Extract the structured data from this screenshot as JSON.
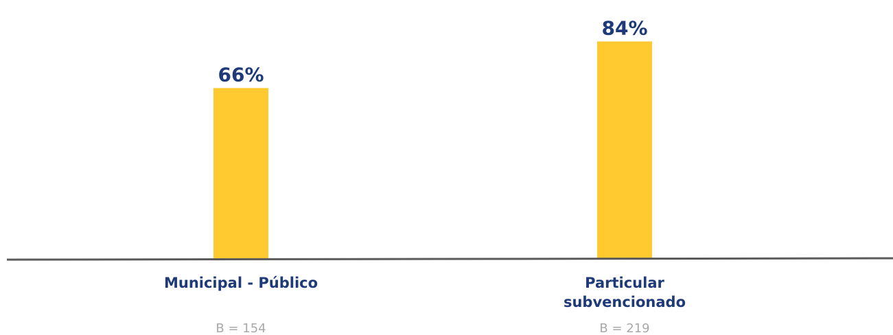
{
  "chart_data": {
    "type": "bar",
    "categories": [
      "Municipal - Público",
      "Particular subvencionado"
    ],
    "category_lines": [
      [
        "Municipal - Público"
      ],
      [
        "Particular",
        "subvencionado"
      ]
    ],
    "values": [
      66,
      84
    ],
    "value_labels": [
      "66%",
      "84%"
    ],
    "bases": [
      "B =  154",
      "B =  219"
    ],
    "title": "",
    "xlabel": "",
    "ylabel": "",
    "ylim": [
      0,
      100
    ],
    "grid": false,
    "legend": "none"
  },
  "colors": {
    "bar": "#FFC930",
    "value_text": "#1F3A78",
    "category_text": "#1F3A78",
    "base_text": "#A8A8A8",
    "axis": "#5A5A5A"
  }
}
